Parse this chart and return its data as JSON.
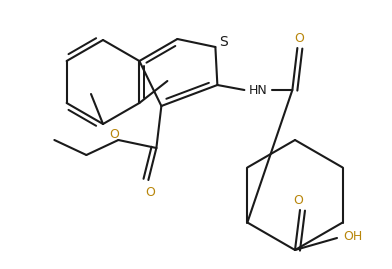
{
  "background_color": "#ffffff",
  "line_color": "#1a1a1a",
  "oxygen_color": "#b8860b",
  "line_width": 1.5,
  "figsize": [
    3.92,
    2.69
  ],
  "dpi": 100,
  "xlim": [
    0,
    392
  ],
  "ylim": [
    0,
    269
  ]
}
